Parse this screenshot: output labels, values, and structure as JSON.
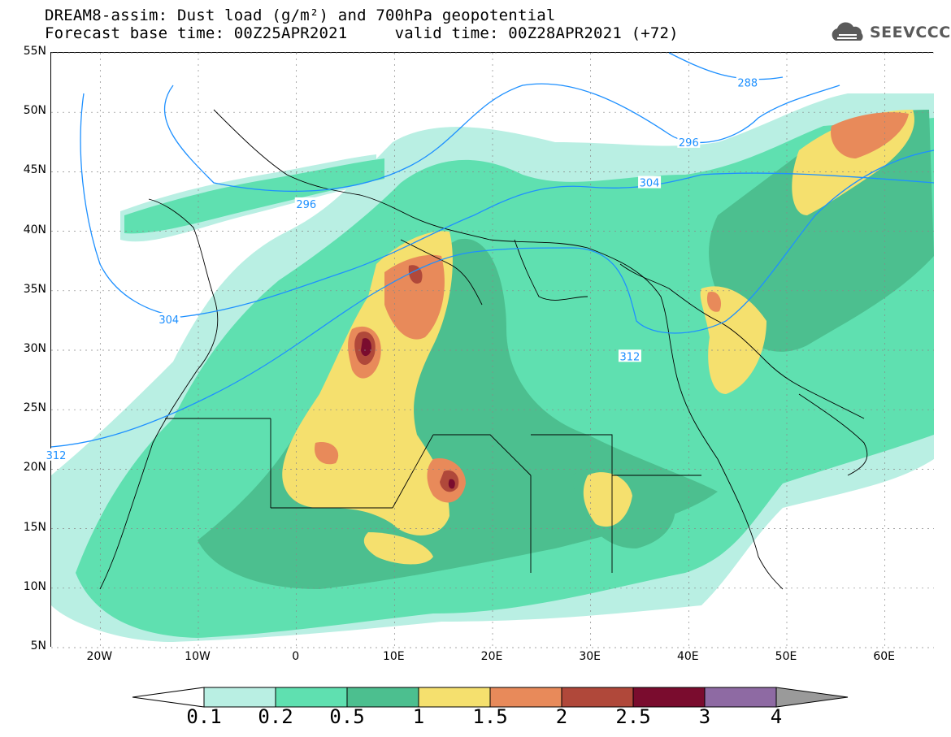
{
  "title": {
    "line1": "DREAM8-assim: Dust load (g/m²) and 700hPa geopotential",
    "line2": "Forecast base time: 00Z25APR2021     valid time: 00Z28APR2021 (+72)"
  },
  "brand": {
    "name": "SEEVCCC",
    "icon": "cloud-logo-icon"
  },
  "map": {
    "lon_range": [
      -25,
      65
    ],
    "lat_range": [
      5,
      55
    ],
    "lat_ticks": [
      {
        "value": 55,
        "label": "55N"
      },
      {
        "value": 50,
        "label": "50N"
      },
      {
        "value": 45,
        "label": "45N"
      },
      {
        "value": 40,
        "label": "40N"
      },
      {
        "value": 35,
        "label": "35N"
      },
      {
        "value": 30,
        "label": "30N"
      },
      {
        "value": 25,
        "label": "25N"
      },
      {
        "value": 20,
        "label": "20N"
      },
      {
        "value": 15,
        "label": "15N"
      },
      {
        "value": 10,
        "label": "10N"
      },
      {
        "value": 5,
        "label": "5N"
      }
    ],
    "lon_ticks": [
      {
        "value": -20,
        "label": "20W"
      },
      {
        "value": -10,
        "label": "10W"
      },
      {
        "value": 0,
        "label": "0"
      },
      {
        "value": 10,
        "label": "10E"
      },
      {
        "value": 20,
        "label": "20E"
      },
      {
        "value": 30,
        "label": "30E"
      },
      {
        "value": 40,
        "label": "40E"
      },
      {
        "value": 50,
        "label": "50E"
      },
      {
        "value": 60,
        "label": "60E"
      }
    ],
    "contour_color": "#1e90ff",
    "contours": [
      {
        "label": "288",
        "label_at": [
          46,
          52.5
        ]
      },
      {
        "label": "296",
        "label_at": [
          40,
          47.5
        ]
      },
      {
        "label": "296",
        "label_at": [
          1,
          42.3
        ]
      },
      {
        "label": "304",
        "label_at": [
          36,
          44.1
        ]
      },
      {
        "label": "304",
        "label_at": [
          -13,
          32.6
        ]
      },
      {
        "label": "312",
        "label_at": [
          34,
          29.5
        ]
      },
      {
        "label": "312",
        "label_at": [
          -24.5,
          21.2
        ]
      }
    ]
  },
  "colorbar": {
    "levels": [
      "0.1",
      "0.2",
      "0.5",
      "1",
      "1.5",
      "2",
      "2.5",
      "3",
      "4"
    ],
    "colors": [
      "#ffffff",
      "#b9efe3",
      "#5fe0b0",
      "#4cbf8f",
      "#f5e06e",
      "#e88a5a",
      "#b0483a",
      "#7a0c2e",
      "#8e6aa3",
      "#9a9a9a"
    ]
  }
}
